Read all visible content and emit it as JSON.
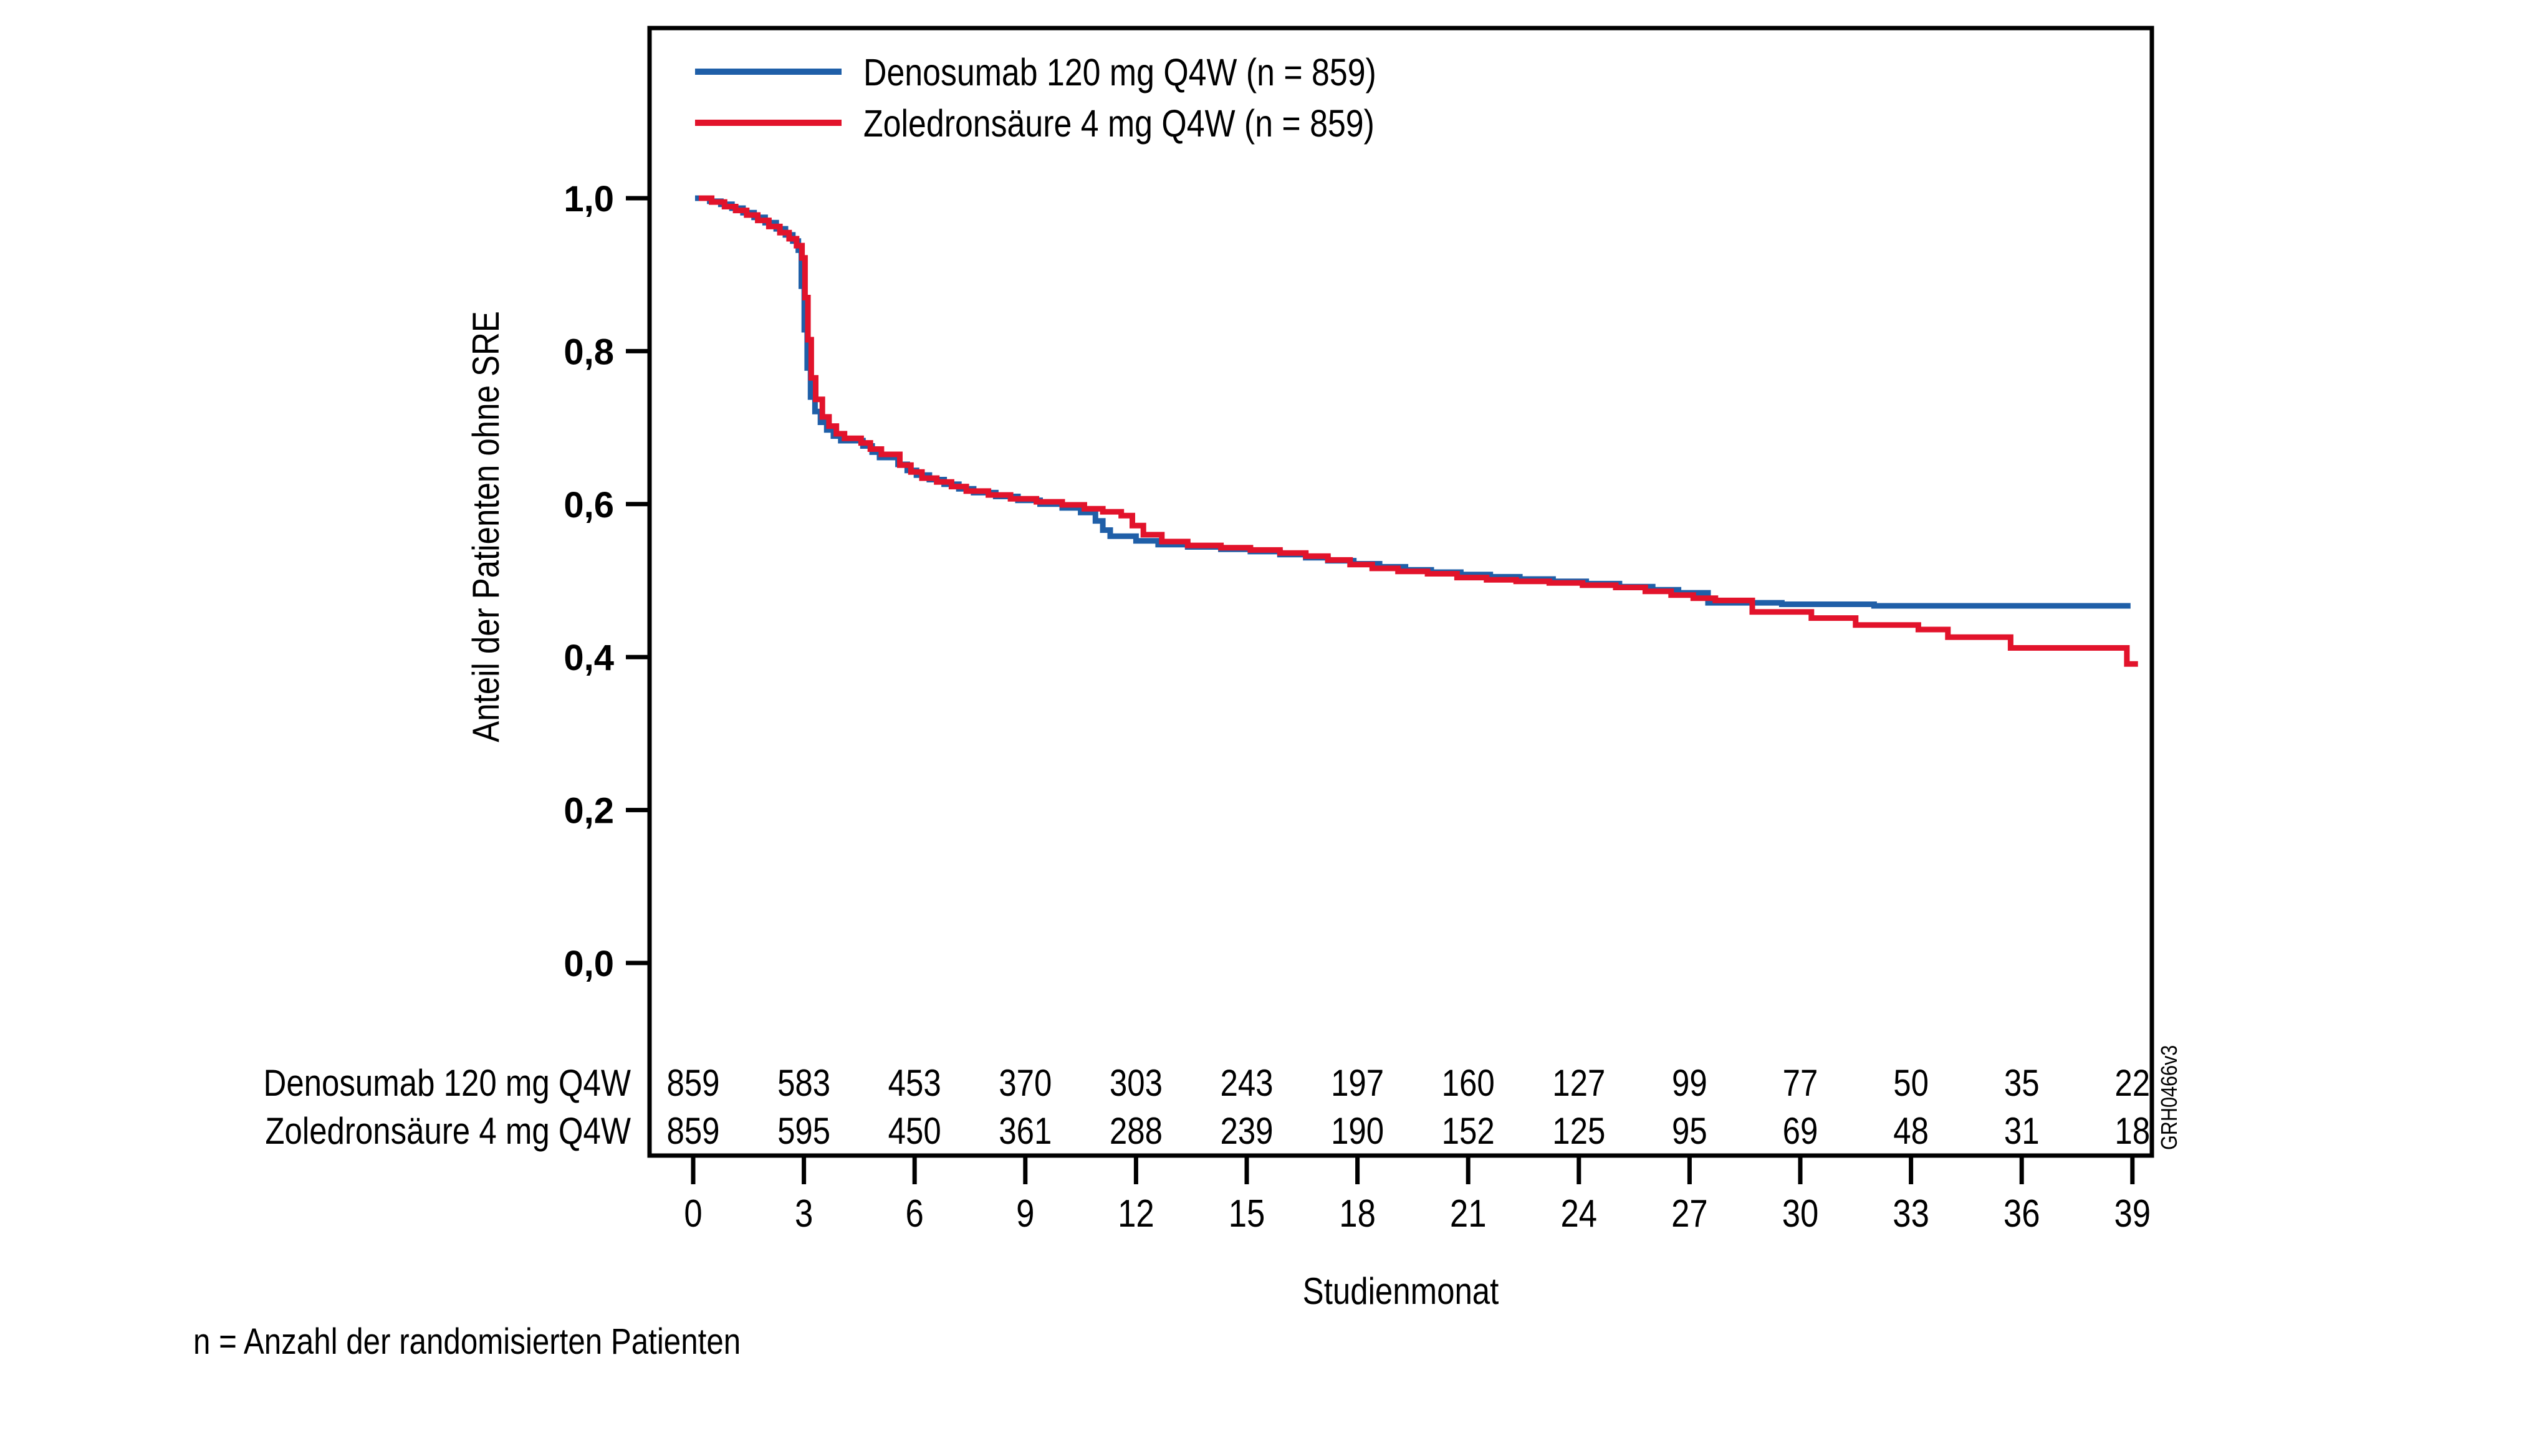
{
  "figure": {
    "footnote": "n = Anzahl der randomisierten Patienten",
    "watermark_code": "GRH0466v3",
    "background_color": "#ffffff",
    "axis_color": "#000000"
  },
  "chart_data": {
    "type": "line",
    "subtype": "kaplan-meier-step",
    "title": "",
    "xlabel": "Studienmonat",
    "ylabel": "Anteil der Patienten ohne SRE",
    "xlim": [
      0,
      39
    ],
    "ylim": [
      0.0,
      1.0
    ],
    "grid": false,
    "legend_position": "top-left-inside",
    "x_ticks": [
      0,
      3,
      6,
      9,
      12,
      15,
      18,
      21,
      24,
      27,
      30,
      33,
      36,
      39
    ],
    "y_ticks": [
      {
        "value": 1.0,
        "label": "1,0"
      },
      {
        "value": 0.8,
        "label": "0,8"
      },
      {
        "value": 0.6,
        "label": "0,6"
      },
      {
        "value": 0.4,
        "label": "0,4"
      },
      {
        "value": 0.2,
        "label": "0,2"
      },
      {
        "value": 0.0,
        "label": "0,0"
      }
    ],
    "series": [
      {
        "name": "Denosumab 120 mg Q4W (n = 859)",
        "color": "#1f5fa8",
        "end_month": 38.95,
        "points": [
          [
            0.05,
            1.0
          ],
          [
            0.45,
            0.996
          ],
          [
            0.75,
            0.992
          ],
          [
            1.05,
            0.987
          ],
          [
            1.35,
            0.981
          ],
          [
            1.65,
            0.975
          ],
          [
            1.95,
            0.968
          ],
          [
            2.25,
            0.96
          ],
          [
            2.5,
            0.952
          ],
          [
            2.7,
            0.944
          ],
          [
            2.85,
            0.932
          ],
          [
            2.93,
            0.885
          ],
          [
            3.01,
            0.828
          ],
          [
            3.09,
            0.778
          ],
          [
            3.18,
            0.74
          ],
          [
            3.3,
            0.721
          ],
          [
            3.45,
            0.707
          ],
          [
            3.62,
            0.697
          ],
          [
            3.8,
            0.689
          ],
          [
            4.0,
            0.683
          ],
          [
            4.6,
            0.676
          ],
          [
            4.85,
            0.668
          ],
          [
            5.05,
            0.661
          ],
          [
            5.55,
            0.652
          ],
          [
            5.8,
            0.644
          ],
          [
            6.05,
            0.638
          ],
          [
            6.4,
            0.632
          ],
          [
            6.8,
            0.626
          ],
          [
            7.2,
            0.62
          ],
          [
            7.6,
            0.615
          ],
          [
            8.2,
            0.61
          ],
          [
            8.8,
            0.605
          ],
          [
            9.4,
            0.6
          ],
          [
            10.0,
            0.595
          ],
          [
            10.5,
            0.589
          ],
          [
            10.9,
            0.578
          ],
          [
            11.1,
            0.566
          ],
          [
            11.3,
            0.558
          ],
          [
            12.0,
            0.552
          ],
          [
            12.6,
            0.547
          ],
          [
            13.4,
            0.544
          ],
          [
            14.3,
            0.541
          ],
          [
            15.1,
            0.538
          ],
          [
            15.9,
            0.534
          ],
          [
            16.6,
            0.53
          ],
          [
            17.2,
            0.526
          ],
          [
            17.9,
            0.522
          ],
          [
            18.6,
            0.518
          ],
          [
            19.3,
            0.514
          ],
          [
            20.0,
            0.511
          ],
          [
            20.8,
            0.508
          ],
          [
            21.6,
            0.505
          ],
          [
            22.4,
            0.502
          ],
          [
            23.3,
            0.499
          ],
          [
            24.2,
            0.496
          ],
          [
            25.1,
            0.492
          ],
          [
            26.0,
            0.488
          ],
          [
            26.7,
            0.484
          ],
          [
            27.5,
            0.471
          ],
          [
            29.5,
            0.469
          ],
          [
            32.0,
            0.467
          ]
        ]
      },
      {
        "name": "Zoledronsäure 4 mg Q4W (n = 859)",
        "color": "#e2132b",
        "end_month": 39.15,
        "points": [
          [
            0.15,
            1.0
          ],
          [
            0.5,
            0.995
          ],
          [
            0.85,
            0.989
          ],
          [
            1.15,
            0.984
          ],
          [
            1.45,
            0.978
          ],
          [
            1.75,
            0.971
          ],
          [
            2.05,
            0.963
          ],
          [
            2.35,
            0.955
          ],
          [
            2.6,
            0.947
          ],
          [
            2.8,
            0.938
          ],
          [
            2.95,
            0.922
          ],
          [
            3.03,
            0.87
          ],
          [
            3.11,
            0.815
          ],
          [
            3.2,
            0.765
          ],
          [
            3.32,
            0.737
          ],
          [
            3.5,
            0.714
          ],
          [
            3.68,
            0.702
          ],
          [
            3.88,
            0.692
          ],
          [
            4.1,
            0.686
          ],
          [
            4.55,
            0.68
          ],
          [
            4.8,
            0.672
          ],
          [
            5.1,
            0.665
          ],
          [
            5.6,
            0.651
          ],
          [
            5.9,
            0.642
          ],
          [
            6.2,
            0.634
          ],
          [
            6.6,
            0.629
          ],
          [
            7.0,
            0.623
          ],
          [
            7.4,
            0.617
          ],
          [
            8.0,
            0.612
          ],
          [
            8.6,
            0.607
          ],
          [
            9.3,
            0.603
          ],
          [
            10.0,
            0.599
          ],
          [
            10.6,
            0.594
          ],
          [
            11.1,
            0.59
          ],
          [
            11.6,
            0.585
          ],
          [
            11.9,
            0.572
          ],
          [
            12.2,
            0.56
          ],
          [
            12.7,
            0.551
          ],
          [
            13.4,
            0.546
          ],
          [
            14.3,
            0.543
          ],
          [
            15.1,
            0.54
          ],
          [
            15.9,
            0.536
          ],
          [
            16.6,
            0.532
          ],
          [
            17.2,
            0.527
          ],
          [
            17.8,
            0.521
          ],
          [
            18.4,
            0.516
          ],
          [
            19.1,
            0.512
          ],
          [
            19.9,
            0.509
          ],
          [
            20.7,
            0.504
          ],
          [
            21.5,
            0.501
          ],
          [
            22.3,
            0.499
          ],
          [
            23.2,
            0.497
          ],
          [
            24.1,
            0.494
          ],
          [
            25.0,
            0.491
          ],
          [
            25.8,
            0.486
          ],
          [
            26.5,
            0.481
          ],
          [
            27.1,
            0.477
          ],
          [
            27.7,
            0.474
          ],
          [
            28.7,
            0.459
          ],
          [
            30.3,
            0.451
          ],
          [
            31.5,
            0.442
          ],
          [
            33.2,
            0.436
          ],
          [
            34.0,
            0.426
          ],
          [
            35.7,
            0.412
          ],
          [
            38.85,
            0.391
          ]
        ]
      }
    ],
    "risk_table": {
      "months": [
        0,
        3,
        6,
        9,
        12,
        15,
        18,
        21,
        24,
        27,
        30,
        33,
        36,
        39
      ],
      "rows": [
        {
          "label": "Denosumab 120 mg Q4W",
          "counts": [
            859,
            583,
            453,
            370,
            303,
            243,
            197,
            160,
            127,
            99,
            77,
            50,
            35,
            22
          ]
        },
        {
          "label": "Zoledronsäure 4 mg Q4W",
          "counts": [
            859,
            595,
            450,
            361,
            288,
            239,
            190,
            152,
            125,
            95,
            69,
            48,
            31,
            18
          ]
        }
      ]
    }
  }
}
